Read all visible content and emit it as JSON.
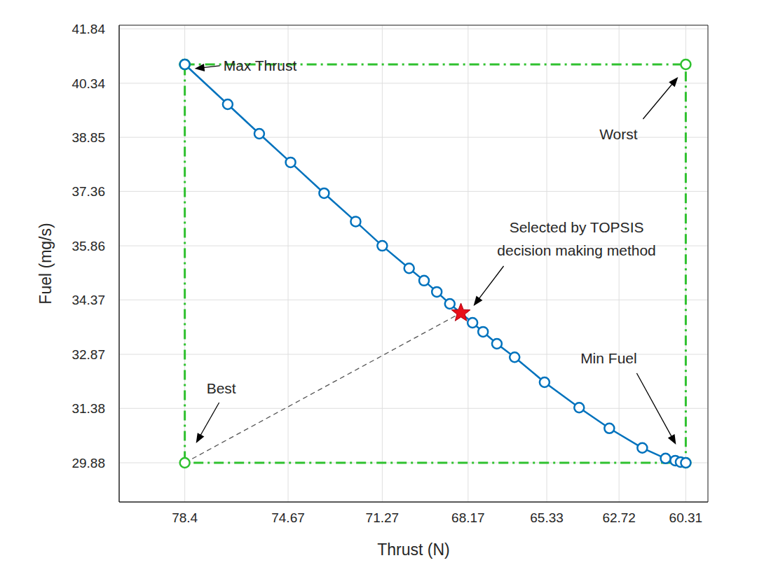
{
  "chart_data": {
    "type": "line",
    "x_label": "Thrust (N)",
    "y_label": "Fuel (mg/s)",
    "xlim": [
      80.77,
      59.51
    ],
    "xticks": [
      78.4,
      74.67,
      71.27,
      68.17,
      65.33,
      62.72,
      60.31
    ],
    "ylim": [
      28.8,
      41.94
    ],
    "yticks": [
      29.88,
      31.38,
      32.87,
      34.37,
      35.86,
      37.36,
      38.85,
      40.34,
      41.84
    ],
    "grid": true,
    "series": [
      {
        "type": "line",
        "color": "#2fc12f",
        "marker": "circle",
        "line_style": "dashdot",
        "x": [
          78.4,
          60.31,
          60.31,
          78.4,
          78.4
        ],
        "values": [
          40.86,
          40.86,
          29.88,
          29.88,
          40.86
        ]
      },
      {
        "type": "line",
        "color": "#555555",
        "marker": "none",
        "line_style": "dashed",
        "x": [
          78.4,
          68.43
        ],
        "values": [
          29.88,
          34.01
        ]
      },
      {
        "type": "line",
        "color": "#0072bd",
        "marker": "circle",
        "line_style": "solid",
        "x": [
          78.4,
          76.85,
          75.71,
          74.58,
          73.37,
          72.23,
          71.27,
          70.3,
          69.76,
          69.3,
          68.83,
          68.01,
          67.63,
          67.13,
          66.49,
          65.41,
          64.16,
          63.07,
          61.88,
          61.04,
          60.69,
          60.5,
          60.31
        ],
        "values": [
          40.86,
          39.76,
          38.95,
          38.16,
          37.31,
          36.53,
          35.86,
          35.24,
          34.9,
          34.59,
          34.26,
          33.74,
          33.49,
          33.16,
          32.79,
          32.1,
          31.4,
          30.83,
          30.29,
          30.0,
          29.94,
          29.9,
          29.88
        ]
      },
      {
        "type": "scatter",
        "color": "#e8101a",
        "marker": "star",
        "x": [
          68.43
        ],
        "values": [
          34.01
        ]
      }
    ],
    "annotations": [
      {
        "text": "Max Thrust",
        "x": 78.4,
        "y": 40.86
      },
      {
        "text": "Worst",
        "x": 60.31,
        "y": 40.86
      },
      {
        "text": "Selected by TOPSIS\ndecision making method",
        "x": 68.43,
        "y": 34.01
      },
      {
        "text": "Best",
        "x": 78.4,
        "y": 29.88
      },
      {
        "text": "Min Fuel",
        "x": 60.31,
        "y": 29.88
      }
    ]
  }
}
